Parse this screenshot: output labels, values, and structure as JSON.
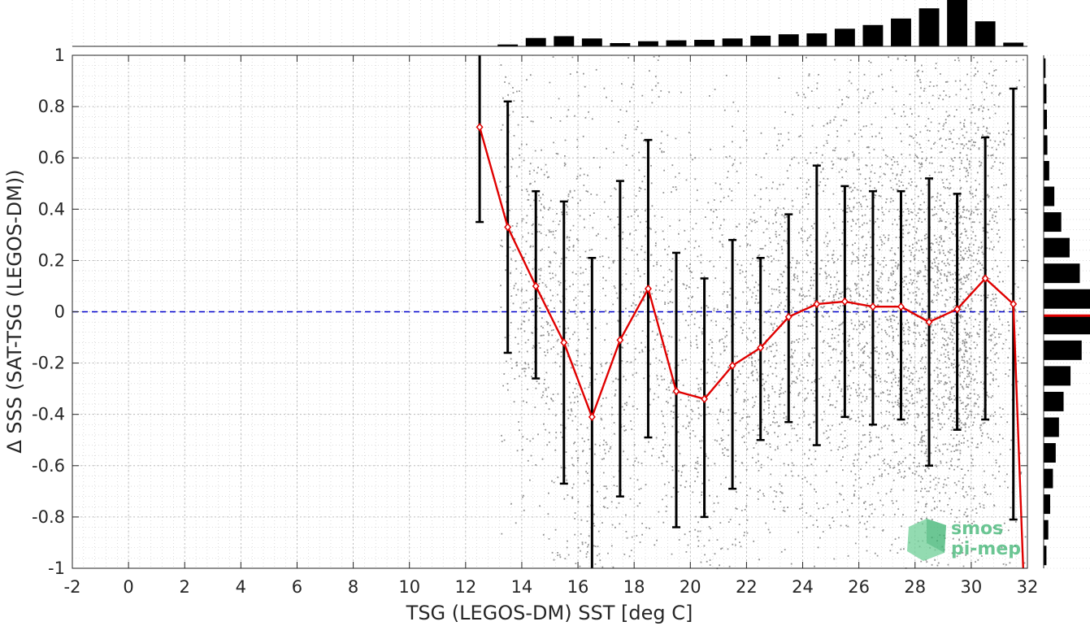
{
  "chart_data": {
    "type": "scatter",
    "xlabel": "TSG (LEGOS-DM) SST [deg C]",
    "ylabel": "Δ SSS (SAT-TSG (LEGOS-DM))",
    "xlim": [
      -2,
      32
    ],
    "ylim": [
      -1,
      1
    ],
    "xticks": [
      "-2",
      "0",
      "2",
      "4",
      "6",
      "8",
      "10",
      "12",
      "14",
      "16",
      "18",
      "20",
      "22",
      "24",
      "26",
      "28",
      "30",
      "32"
    ],
    "yticks": [
      "-1",
      "-0.8",
      "-0.6",
      "-0.4",
      "-0.2",
      "0",
      "0.2",
      "0.4",
      "0.6",
      "0.8",
      "1"
    ],
    "grid": true,
    "reference_line": {
      "y": 0,
      "style": "dashed",
      "color": "#0000cc"
    },
    "mean_series": {
      "x": [
        12.5,
        13.5,
        14.5,
        15.5,
        16.5,
        17.5,
        18.5,
        19.5,
        20.5,
        21.5,
        22.5,
        23.5,
        24.5,
        25.5,
        26.5,
        27.5,
        28.5,
        29.5,
        30.5,
        31.5
      ],
      "mean": [
        0.72,
        0.33,
        0.1,
        -0.12,
        -0.41,
        -0.11,
        0.09,
        -0.31,
        -0.34,
        -0.21,
        -0.14,
        -0.02,
        0.03,
        0.04,
        0.02,
        0.02,
        -0.04,
        0.01,
        0.13,
        0.03
      ],
      "upper": [
        1.05,
        0.82,
        0.47,
        0.43,
        0.21,
        0.51,
        0.67,
        0.23,
        0.13,
        0.28,
        0.21,
        0.38,
        0.57,
        0.49,
        0.47,
        0.47,
        0.52,
        0.46,
        0.68,
        0.87
      ],
      "lower": [
        0.35,
        -0.16,
        -0.26,
        -0.67,
        -1.05,
        -0.72,
        -0.49,
        -0.84,
        -0.8,
        -0.69,
        -0.5,
        -0.43,
        -0.52,
        -0.41,
        -0.44,
        -0.42,
        -0.6,
        -0.46,
        -0.42,
        -0.81
      ],
      "tail_end": {
        "x": 31.85,
        "y": -1
      },
      "color": "#e00000"
    },
    "scatter_color": "#808080",
    "top_histogram": {
      "x": [
        13.5,
        14.5,
        15.5,
        16.5,
        17.5,
        18.5,
        19.5,
        20.5,
        21.5,
        22.5,
        23.5,
        24.5,
        25.5,
        26.5,
        27.5,
        28.5,
        29.5,
        30.5,
        31.5
      ],
      "values": [
        0.04,
        0.18,
        0.22,
        0.17,
        0.07,
        0.11,
        0.13,
        0.14,
        0.17,
        0.23,
        0.26,
        0.28,
        0.38,
        0.46,
        0.6,
        0.82,
        1.0,
        0.54,
        0.08
      ]
    },
    "right_histogram": {
      "y": [
        -0.95,
        -0.85,
        -0.75,
        -0.65,
        -0.55,
        -0.45,
        -0.35,
        -0.25,
        -0.15,
        -0.05,
        0.05,
        0.15,
        0.25,
        0.35,
        0.45,
        0.55,
        0.65,
        0.75,
        0.85,
        0.95
      ],
      "values": [
        0.06,
        0.1,
        0.14,
        0.2,
        0.26,
        0.33,
        0.43,
        0.58,
        0.82,
        1.0,
        1.0,
        0.78,
        0.56,
        0.38,
        0.23,
        0.12,
        0.08,
        0.07,
        0.06,
        0.04
      ],
      "mean_marker_y": -0.015
    }
  },
  "logo": {
    "line1": "smos",
    "line2": "pi-mep",
    "color": "#3cb371"
  }
}
